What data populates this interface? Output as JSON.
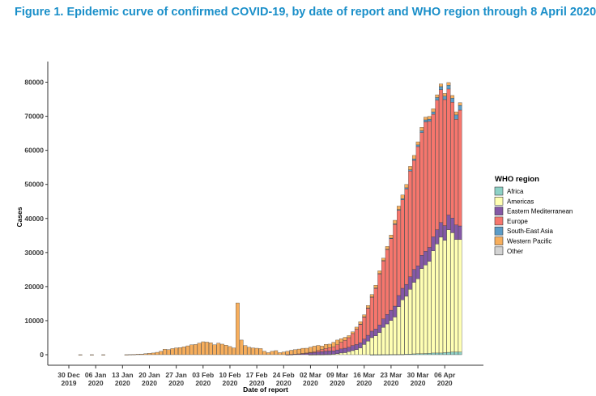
{
  "title": "Figure 1. Epidemic curve of confirmed COVID-19, by date of report and WHO region through 8 April 2020",
  "chart_data": {
    "type": "bar",
    "stacked": true,
    "xlabel": "Date of report",
    "ylabel": "Cases",
    "ylim": [
      0,
      84000
    ],
    "yticks": [
      0,
      10000,
      20000,
      30000,
      40000,
      50000,
      60000,
      70000,
      80000
    ],
    "x_start": "2019-12-30",
    "xticks": [
      {
        "date": "2019-12-30",
        "line1": "30 Dec",
        "line2": "2019"
      },
      {
        "date": "2020-01-06",
        "line1": "06 Jan",
        "line2": "2020"
      },
      {
        "date": "2020-01-13",
        "line1": "13 Jan",
        "line2": "2020"
      },
      {
        "date": "2020-01-20",
        "line1": "20 Jan",
        "line2": "2020"
      },
      {
        "date": "2020-01-27",
        "line1": "27 Jan",
        "line2": "2020"
      },
      {
        "date": "2020-02-03",
        "line1": "03 Feb",
        "line2": "2020"
      },
      {
        "date": "2020-02-10",
        "line1": "10 Feb",
        "line2": "2020"
      },
      {
        "date": "2020-02-17",
        "line1": "17 Feb",
        "line2": "2020"
      },
      {
        "date": "2020-02-24",
        "line1": "24 Feb",
        "line2": "2020"
      },
      {
        "date": "2020-03-02",
        "line1": "02 Mar",
        "line2": "2020"
      },
      {
        "date": "2020-03-09",
        "line1": "09 Mar",
        "line2": "2020"
      },
      {
        "date": "2020-03-16",
        "line1": "16 Mar",
        "line2": "2020"
      },
      {
        "date": "2020-03-23",
        "line1": "23 Mar",
        "line2": "2020"
      },
      {
        "date": "2020-03-30",
        "line1": "30 Mar",
        "line2": "2020"
      },
      {
        "date": "2020-04-06",
        "line1": "06 Apr",
        "line2": "2020"
      }
    ],
    "legend": {
      "title": "WHO region",
      "position": "right"
    },
    "series": [
      {
        "name": "Africa",
        "color": "#8ed1c6",
        "values": [
          0,
          0,
          0,
          0,
          0,
          0,
          0,
          0,
          0,
          0,
          0,
          0,
          0,
          0,
          0,
          0,
          0,
          0,
          0,
          0,
          0,
          0,
          0,
          0,
          0,
          0,
          0,
          0,
          0,
          0,
          0,
          0,
          0,
          0,
          0,
          0,
          0,
          0,
          0,
          0,
          0,
          0,
          0,
          0,
          0,
          0,
          0,
          0,
          0,
          0,
          0,
          0,
          0,
          0,
          0,
          0,
          0,
          0,
          0,
          0,
          0,
          0,
          0,
          0,
          0,
          0,
          0,
          0,
          0,
          0,
          0,
          0,
          0,
          0,
          0,
          0,
          0,
          0,
          0,
          10,
          20,
          20,
          30,
          30,
          50,
          60,
          80,
          100,
          150,
          200,
          250,
          300,
          300,
          350,
          400,
          500,
          500,
          500,
          600,
          700,
          800,
          800,
          800
        ]
      },
      {
        "name": "Americas",
        "color": "#ffffb3",
        "values": [
          0,
          0,
          0,
          0,
          0,
          0,
          0,
          0,
          0,
          0,
          0,
          0,
          0,
          0,
          0,
          0,
          0,
          0,
          0,
          0,
          0,
          0,
          0,
          0,
          0,
          0,
          0,
          0,
          0,
          0,
          0,
          0,
          0,
          0,
          0,
          0,
          0,
          0,
          0,
          0,
          0,
          0,
          0,
          0,
          0,
          0,
          0,
          0,
          0,
          0,
          0,
          0,
          0,
          0,
          0,
          0,
          0,
          0,
          0,
          0,
          0,
          0,
          0,
          10,
          20,
          30,
          30,
          50,
          100,
          150,
          300,
          500,
          600,
          900,
          1200,
          1500,
          2000,
          3000,
          4000,
          5000,
          5500,
          6500,
          8000,
          9000,
          10000,
          11000,
          14000,
          16000,
          17000,
          19000,
          21000,
          22000,
          25000,
          26000,
          27000,
          30000,
          32000,
          34000,
          33000,
          36000,
          35000,
          33000,
          33000
        ]
      },
      {
        "name": "Eastern Mediterranean",
        "color": "#8458a6",
        "values": [
          0,
          0,
          0,
          0,
          0,
          0,
          0,
          0,
          0,
          0,
          0,
          0,
          0,
          0,
          0,
          0,
          0,
          0,
          0,
          0,
          0,
          0,
          0,
          0,
          0,
          0,
          0,
          0,
          0,
          0,
          0,
          0,
          0,
          0,
          0,
          0,
          0,
          0,
          0,
          0,
          0,
          0,
          0,
          0,
          0,
          0,
          0,
          0,
          0,
          0,
          0,
          0,
          0,
          0,
          0,
          0,
          0,
          30,
          100,
          150,
          200,
          300,
          400,
          500,
          600,
          800,
          900,
          1000,
          1000,
          1000,
          1100,
          1200,
          1300,
          1300,
          1500,
          1500,
          1500,
          1600,
          1700,
          1900,
          2000,
          2200,
          2500,
          2800,
          3000,
          3200,
          3300,
          3400,
          3500,
          3700,
          3800,
          3800,
          3900,
          4000,
          4100,
          4100,
          4200,
          4300,
          4300,
          4300,
          4300,
          4300,
          4000
        ]
      },
      {
        "name": "Europe",
        "color": "#f6766d",
        "values": [
          0,
          0,
          0,
          0,
          0,
          0,
          0,
          0,
          0,
          0,
          0,
          0,
          0,
          0,
          0,
          0,
          0,
          0,
          0,
          0,
          0,
          0,
          0,
          0,
          0,
          0,
          0,
          0,
          0,
          0,
          0,
          0,
          0,
          0,
          0,
          0,
          0,
          0,
          0,
          0,
          0,
          0,
          0,
          0,
          0,
          0,
          0,
          0,
          0,
          0,
          0,
          0,
          0,
          0,
          0,
          0,
          0,
          0,
          10,
          20,
          50,
          80,
          100,
          200,
          300,
          400,
          600,
          800,
          1000,
          1200,
          1500,
          2000,
          2300,
          2800,
          3500,
          4500,
          5500,
          6500,
          8000,
          10000,
          12000,
          15000,
          17000,
          19000,
          21000,
          24000,
          25000,
          26000,
          28000,
          31000,
          32000,
          35000,
          36000,
          38000,
          37000,
          36000,
          38000,
          39000,
          37000,
          37000,
          34000,
          31000,
          34000
        ]
      },
      {
        "name": "South-East Asia",
        "color": "#5b9cc8",
        "values": [
          0,
          0,
          0,
          0,
          0,
          0,
          0,
          0,
          0,
          0,
          0,
          0,
          0,
          0,
          0,
          0,
          0,
          0,
          0,
          0,
          0,
          0,
          0,
          0,
          0,
          0,
          0,
          0,
          0,
          0,
          0,
          0,
          0,
          0,
          0,
          0,
          0,
          0,
          0,
          0,
          0,
          0,
          0,
          0,
          0,
          0,
          0,
          0,
          0,
          0,
          0,
          0,
          0,
          0,
          0,
          0,
          0,
          0,
          0,
          0,
          0,
          0,
          0,
          0,
          0,
          0,
          0,
          0,
          0,
          0,
          0,
          0,
          0,
          0,
          0,
          0,
          10,
          20,
          30,
          50,
          80,
          100,
          120,
          150,
          180,
          200,
          250,
          300,
          350,
          400,
          450,
          500,
          550,
          600,
          650,
          700,
          800,
          900,
          1000,
          1100,
          1200,
          1300,
          1400
        ]
      },
      {
        "name": "Western Pacific",
        "color": "#f7ae5c",
        "values": [
          0,
          0,
          0,
          10,
          0,
          0,
          10,
          0,
          0,
          10,
          0,
          0,
          0,
          0,
          0,
          20,
          50,
          100,
          150,
          200,
          300,
          400,
          500,
          700,
          1000,
          1600,
          1500,
          1800,
          2000,
          2100,
          2300,
          2600,
          2900,
          3000,
          3400,
          3800,
          3700,
          3500,
          2900,
          3400,
          3100,
          2800,
          2400,
          2000,
          15200,
          4300,
          2700,
          2200,
          2000,
          1900,
          1800,
          1000,
          600,
          1000,
          1200,
          600,
          800,
          1000,
          1200,
          1300,
          1400,
          1500,
          1400,
          1500,
          1600,
          1500,
          1000,
          1200,
          1000,
          1300,
          1400,
          1000,
          900,
          600,
          500,
          600,
          700,
          600,
          700,
          700,
          800,
          800,
          700,
          800,
          900,
          1000,
          1000,
          1100,
          1000,
          1000,
          1000,
          900,
          1000,
          800,
          800,
          900,
          800,
          800,
          800,
          800,
          800,
          900,
          800
        ]
      },
      {
        "name": "Other",
        "color": "#d3d3d3",
        "values": [
          0,
          0,
          0,
          0,
          0,
          0,
          0,
          0,
          0,
          0,
          0,
          0,
          0,
          0,
          0,
          0,
          0,
          0,
          0,
          0,
          0,
          0,
          0,
          0,
          0,
          0,
          0,
          0,
          0,
          0,
          0,
          0,
          0,
          0,
          0,
          0,
          0,
          0,
          0,
          0,
          0,
          0,
          0,
          0,
          0,
          0,
          0,
          0,
          0,
          0,
          0,
          0,
          0,
          0,
          0,
          0,
          0,
          0,
          0,
          0,
          0,
          0,
          0,
          0,
          0,
          0,
          0,
          0,
          0,
          0,
          0,
          0,
          0,
          0,
          0,
          0,
          0,
          0,
          0,
          0,
          0,
          0,
          0,
          0,
          0,
          0,
          0,
          0,
          0,
          0,
          0,
          0,
          0,
          0,
          0,
          0,
          0,
          0,
          0,
          0,
          0,
          0,
          0
        ]
      }
    ]
  }
}
